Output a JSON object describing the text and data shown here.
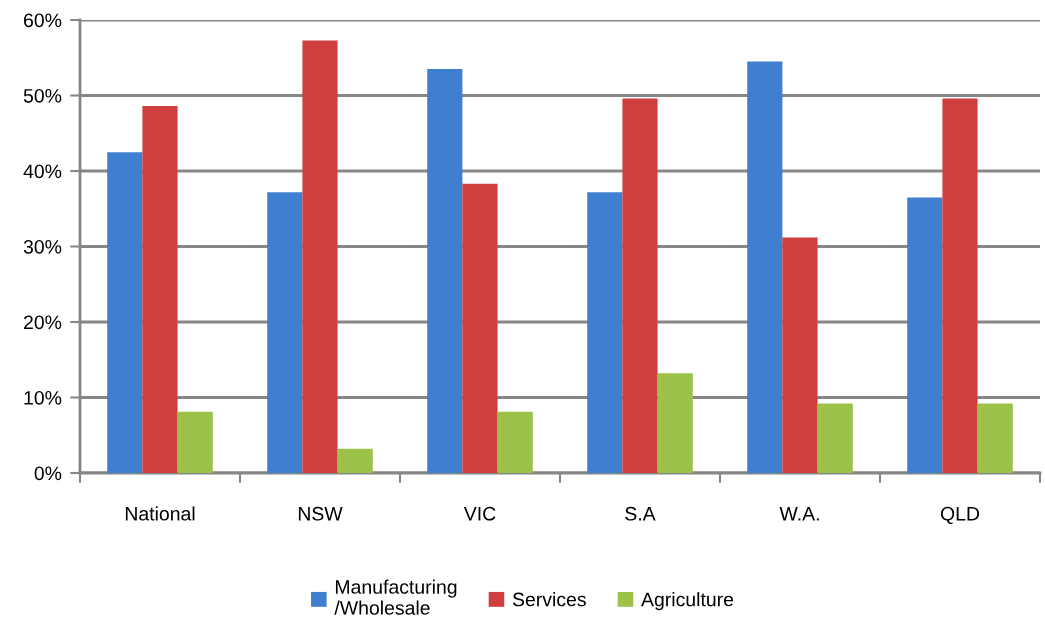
{
  "chart_data": {
    "type": "bar",
    "categories": [
      "National",
      "NSW",
      "VIC",
      "S.A",
      "W.A.",
      "QLD"
    ],
    "series": [
      {
        "name": "Manufacturing\n/Wholesale",
        "color": "#3f7fcf",
        "values": [
          42.5,
          37.2,
          53.5,
          37.2,
          54.5,
          36.5
        ]
      },
      {
        "name": "Services",
        "color": "#d03f3f",
        "values": [
          48.6,
          57.3,
          38.3,
          49.6,
          31.2,
          49.6
        ]
      },
      {
        "name": "Agriculture",
        "color": "#9cc24a",
        "values": [
          8.1,
          3.2,
          8.1,
          13.2,
          9.2,
          9.2
        ]
      }
    ],
    "ylim": [
      0,
      60
    ],
    "yticks": [
      {
        "value": 0,
        "label": "0%"
      },
      {
        "value": 10,
        "label": "10%"
      },
      {
        "value": 20,
        "label": "20%"
      },
      {
        "value": 30,
        "label": "30%"
      },
      {
        "value": 40,
        "label": "40%"
      },
      {
        "value": 50,
        "label": "50%"
      },
      {
        "value": 60,
        "label": "60%"
      }
    ],
    "grid": "y",
    "legend": "bottom"
  }
}
